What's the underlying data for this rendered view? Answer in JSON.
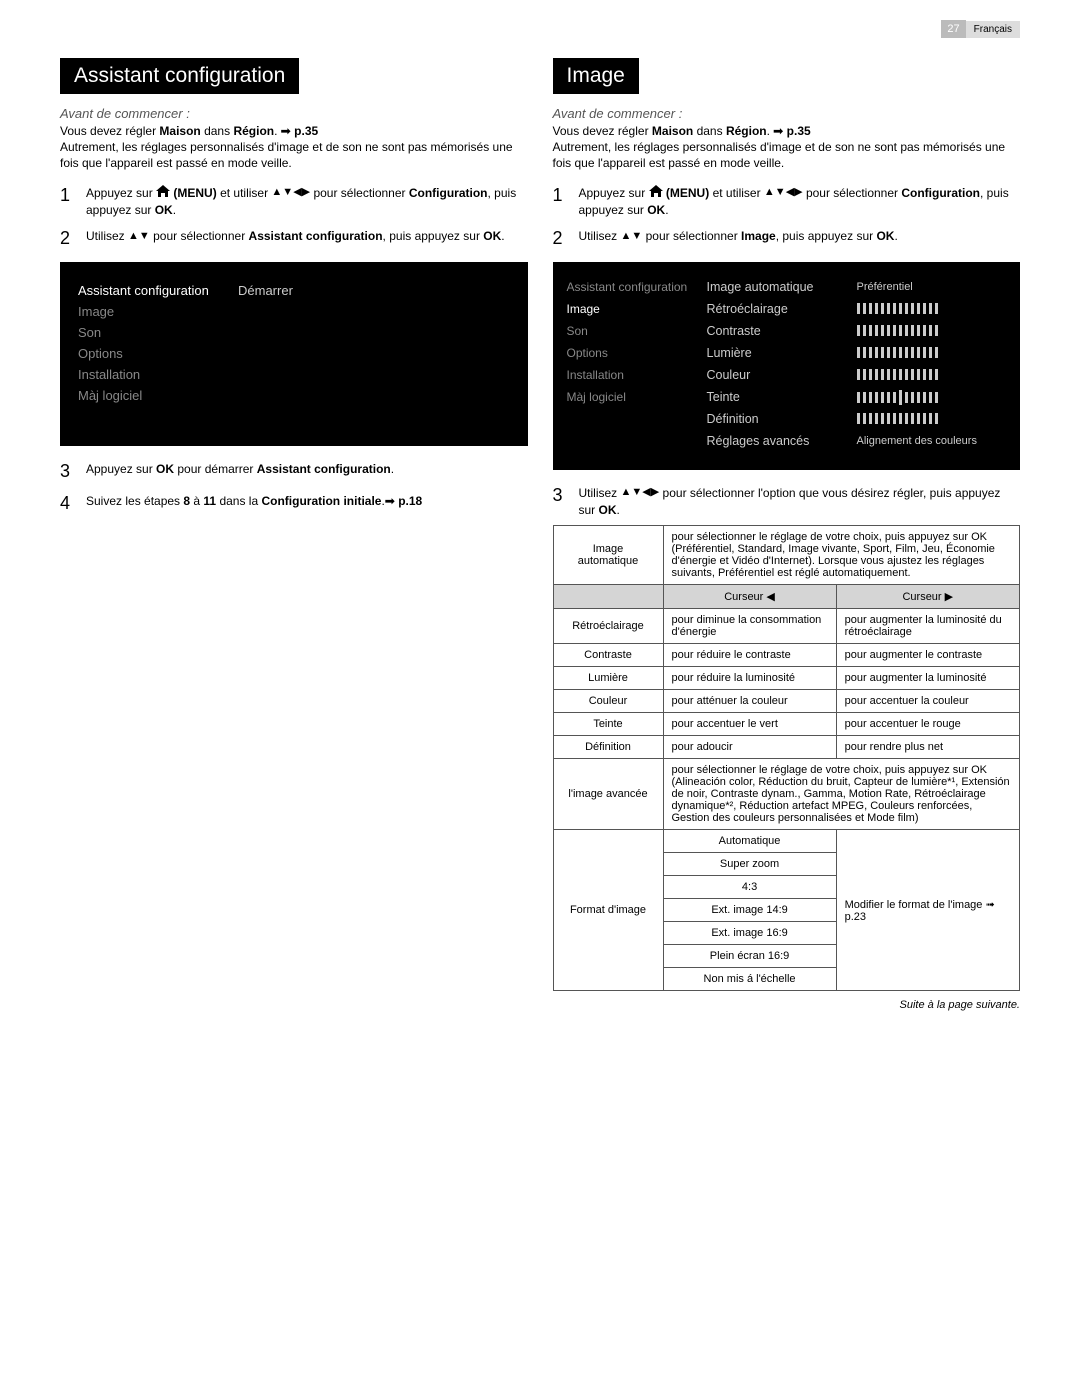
{
  "page": {
    "number": "27",
    "language": "Français"
  },
  "left": {
    "title": "Assistant configuration",
    "before": "Avant de commencer :",
    "intro1_a": "Vous devez régler ",
    "intro1_b": "Maison",
    "intro1_c": " dans ",
    "intro1_d": "Région",
    "intro1_e": ". ",
    "intro1_ref": "➟ p.35",
    "intro2": "Autrement, les réglages personnalisés d'image et de son ne sont pas mémorisés une fois que l'appareil est passé en mode veille.",
    "step1_a": "Appuyez sur ",
    "step1_menu": "(MENU)",
    "step1_b": " et utiliser ",
    "step1_c": " pour sélectionner ",
    "step1_d": "Configuration",
    "step1_e": ", puis appuyez sur ",
    "step1_ok": "OK",
    "step1_f": ".",
    "step2_a": "Utilisez ",
    "step2_b": " pour sélectionner ",
    "step2_c": "Assistant configuration",
    "step2_d": ", puis appuyez sur ",
    "step2_ok": "OK",
    "step2_e": ".",
    "osd": {
      "menu": [
        "Assistant configuration",
        "Image",
        "Son",
        "Options",
        "Installation",
        "Màj logiciel"
      ],
      "active_index": 0,
      "value": "Démarrer"
    },
    "step3_a": "Appuyez sur ",
    "step3_ok": "OK",
    "step3_b": " pour démarrer ",
    "step3_c": "Assistant configuration",
    "step3_d": ".",
    "step4_a": "Suivez les étapes ",
    "step4_b": "8",
    "step4_c": " à ",
    "step4_d": "11",
    "step4_e": " dans la ",
    "step4_f": "Configuration initiale",
    "step4_g": ".",
    "step4_ref": "➟ p.18"
  },
  "right": {
    "title": "Image",
    "before": "Avant de commencer :",
    "intro1_a": "Vous devez régler ",
    "intro1_b": "Maison",
    "intro1_c": " dans ",
    "intro1_d": "Région",
    "intro1_e": ". ",
    "intro1_ref": "➟ p.35",
    "intro2": "Autrement, les réglages personnalisés d'image et de son ne sont pas mémorisés une fois que l'appareil est passé en mode veille.",
    "step1_a": "Appuyez sur ",
    "step1_menu": "(MENU)",
    "step1_b": " et utiliser ",
    "step1_c": " pour sélectionner ",
    "step1_d": "Configuration",
    "step1_e": ", puis appuyez sur ",
    "step1_ok": "OK",
    "step1_f": ".",
    "step2_a": "Utilisez ",
    "step2_b": " pour sélectionner ",
    "step2_c": "Image",
    "step2_d": ", puis appuyez sur ",
    "step2_ok": "OK",
    "step2_e": ".",
    "osd2": {
      "left_menu": [
        "Assistant configuration",
        "Image",
        "Son",
        "Options",
        "Installation",
        "Màj logiciel"
      ],
      "active_index": 1,
      "rows": [
        {
          "label": "Image automatique",
          "value": "Préférentiel",
          "type": "text"
        },
        {
          "label": "Rétroéclairage",
          "type": "ticks"
        },
        {
          "label": "Contraste",
          "type": "ticks"
        },
        {
          "label": "Lumière",
          "type": "ticks"
        },
        {
          "label": "Couleur",
          "type": "ticks"
        },
        {
          "label": "Teinte",
          "type": "ticks_center"
        },
        {
          "label": "Définition",
          "type": "ticks"
        },
        {
          "label": "Réglages avancés",
          "value": "Alignement des couleurs",
          "type": "text"
        }
      ]
    },
    "step3_a": "Utilisez ",
    "step3_b": " pour sélectionner l'option que vous désirez régler, puis appuyez sur ",
    "step3_ok": "OK",
    "step3_c": ".",
    "table": {
      "image_auto_label": "Image automatique",
      "image_auto_text": "pour sélectionner le réglage de votre choix, puis appuyez sur OK (Préférentiel, Standard, Image vivante, Sport, Film, Jeu, Économie d'énergie et Vidéo d'Internet). Lorsque vous ajustez les réglages suivants, Préférentiel est réglé automatiquement.",
      "cursor_left": "Curseur ◀",
      "cursor_right": "Curseur ▶",
      "rows": [
        {
          "label": "Rétroéclairage",
          "left": "pour diminue la consommation d'énergie",
          "right": "pour augmenter la luminosité du rétroéclairage"
        },
        {
          "label": "Contraste",
          "left": "pour réduire le contraste",
          "right": "pour augmenter le contraste"
        },
        {
          "label": "Lumière",
          "left": "pour réduire la luminosité",
          "right": "pour augmenter la luminosité"
        },
        {
          "label": "Couleur",
          "left": "pour atténuer la couleur",
          "right": "pour accentuer la couleur"
        },
        {
          "label": "Teinte",
          "left": "pour accentuer le vert",
          "right": "pour accentuer le rouge"
        },
        {
          "label": "Définition",
          "left": "pour adoucir",
          "right": "pour rendre plus net"
        }
      ],
      "advanced_label": "l'image avancée",
      "advanced_text": "pour sélectionner le réglage de votre choix, puis appuyez sur OK\n(Alineación color, Réduction du bruit, Capteur de lumière*¹, Extensión de noir, Contraste dynam., Gamma, Motion Rate, Rétroéclairage dynamique*², Réduction artefact MPEG, Couleurs renforcées, Gestion des couleurs personnalisées et Mode film)",
      "format_label": "Format d'image",
      "format_options": [
        "Automatique",
        "Super zoom",
        "4:3",
        "Ext. image 14:9",
        "Ext. image 16:9",
        "Plein écran 16:9",
        "Non mis á l'échelle"
      ],
      "format_desc": "Modifier le format de l'image ➟ p.23"
    },
    "continue": "Suite à la page suivante."
  },
  "icons": {
    "arrows4": "▲▼◀▶",
    "arrows2": "▲▼"
  }
}
